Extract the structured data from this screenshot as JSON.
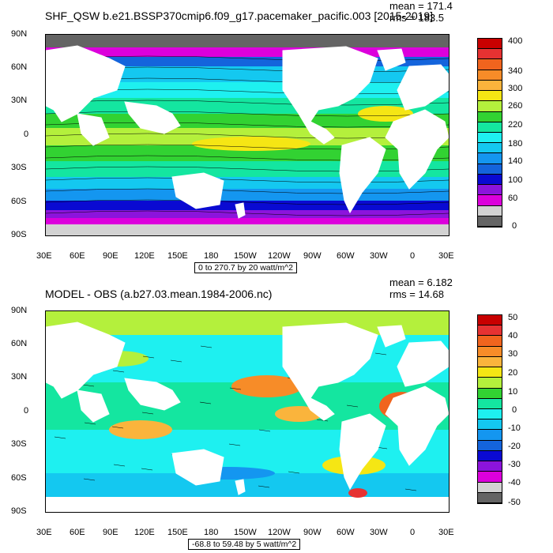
{
  "panels": [
    {
      "title": "SHF_QSW b.e21.BSSP370cmip6.f09_g17.pacemaker_pacific.003 [2015-2019]",
      "mean": "mean = 171.4",
      "rms": "rms = 183.5",
      "caption": "0 to 270.7 by 20 watt/m^2",
      "lat_labels": [
        "90N",
        "60N",
        "30N",
        "0",
        "30S",
        "60S",
        "90S"
      ],
      "lon_labels": [
        "30E",
        "60E",
        "90E",
        "120E",
        "150E",
        "180",
        "150W",
        "120W",
        "90W",
        "60W",
        "30W",
        "0",
        "30E"
      ],
      "colorbar_labels": [
        "400",
        "340",
        "300",
        "260",
        "220",
        "180",
        "140",
        "100",
        "60",
        "0"
      ],
      "colorbar_colors": [
        "#c80000",
        "#e63232",
        "#f0641e",
        "#f78c28",
        "#fab43c",
        "#f5e614",
        "#b4f03c",
        "#32d232",
        "#14e6a0",
        "#1ef0f0",
        "#14c8f0",
        "#1496f0",
        "#1464dc",
        "#0a0ad2",
        "#8c14dc",
        "#dc00dc",
        "#d2d2d2",
        "#646464"
      ]
    },
    {
      "title": "MODEL - OBS (a.b27.03.mean.1984-2006.nc)",
      "mean": "mean = 6.182",
      "rms": "rms = 14.68",
      "caption": "-68.8 to 59.48 by 5 watt/m^2",
      "lat_labels": [
        "90N",
        "60N",
        "30N",
        "0",
        "30S",
        "60S",
        "90S"
      ],
      "lon_labels": [
        "30E",
        "60E",
        "90E",
        "120E",
        "150E",
        "180",
        "150W",
        "120W",
        "90W",
        "60W",
        "30W",
        "0",
        "30E"
      ],
      "colorbar_labels": [
        "50",
        "40",
        "30",
        "20",
        "10",
        "0",
        "-10",
        "-20",
        "-30",
        "-40",
        "-50"
      ],
      "colorbar_colors": [
        "#c80000",
        "#e63232",
        "#f0641e",
        "#f78c28",
        "#fab43c",
        "#f5e614",
        "#b4f03c",
        "#32d232",
        "#14e6a0",
        "#1ef0f0",
        "#14c8f0",
        "#1496f0",
        "#1464dc",
        "#0a0ad2",
        "#8c14dc",
        "#dc00dc",
        "#d2d2d2",
        "#646464"
      ]
    }
  ]
}
